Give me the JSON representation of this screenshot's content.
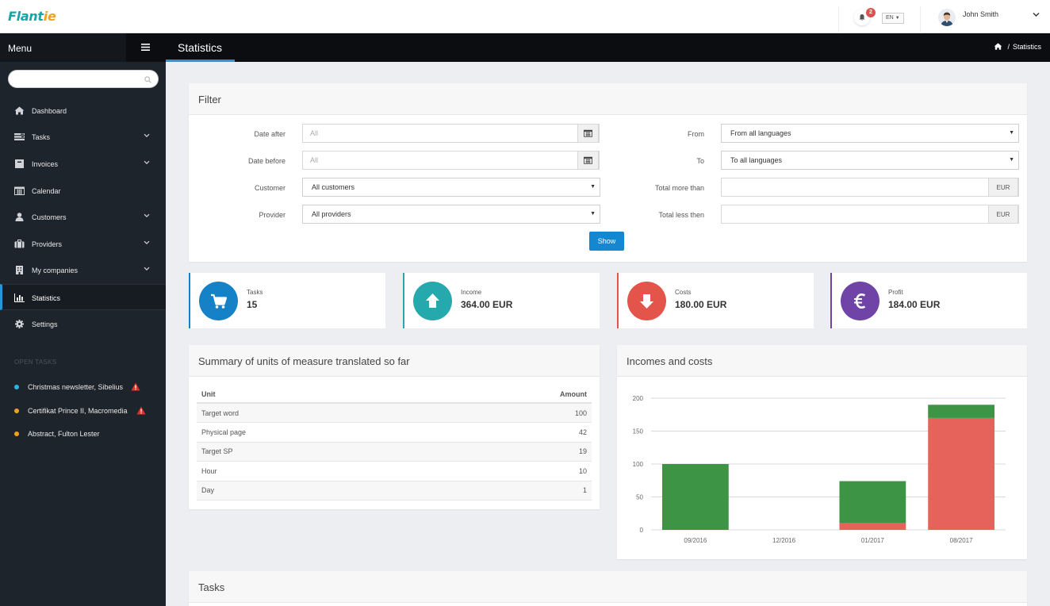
{
  "app": {
    "logo_main": "Flant",
    "logo_accent": "ie"
  },
  "topbar": {
    "notification_count": "2",
    "language": "EN",
    "user_name": "John Smith"
  },
  "sidebar": {
    "menu_title": "Menu",
    "search_placeholder": "",
    "items": [
      {
        "label": "Dashboard",
        "icon": "home-icon",
        "has_children": false
      },
      {
        "label": "Tasks",
        "icon": "tasks-icon",
        "has_children": true
      },
      {
        "label": "Invoices",
        "icon": "invoice-icon",
        "has_children": true
      },
      {
        "label": "Calendar",
        "icon": "calendar-icon",
        "has_children": false
      },
      {
        "label": "Customers",
        "icon": "user-icon",
        "has_children": true
      },
      {
        "label": "Providers",
        "icon": "briefcase-icon",
        "has_children": true
      },
      {
        "label": "My companies",
        "icon": "building-icon",
        "has_children": true
      },
      {
        "label": "Statistics",
        "icon": "bar-chart-icon",
        "has_children": false,
        "active": true
      },
      {
        "label": "Settings",
        "icon": "gear-icon",
        "has_children": false
      }
    ],
    "open_tasks_title": "OPEN TASKS",
    "open_tasks": [
      {
        "label": "Christmas newsletter, Sibelius",
        "dot_color": "#29b6e8",
        "warning": true
      },
      {
        "label": "Certifikat Prince II, Macromedia",
        "dot_color": "#f0a11e",
        "warning": true
      },
      {
        "label": "Abstract, Fulton Lester",
        "dot_color": "#f0a11e",
        "warning": false
      }
    ]
  },
  "page": {
    "title": "Statistics",
    "breadcrumb_current": "Statistics"
  },
  "filter": {
    "title": "Filter",
    "date_after_label": "Date after",
    "date_after_placeholder": "All",
    "date_before_label": "Date before",
    "date_before_placeholder": "All",
    "customer_label": "Customer",
    "customer_value": "All customers",
    "provider_label": "Provider",
    "provider_value": "All providers",
    "from_label": "From",
    "from_value": "From all languages",
    "to_label": "To",
    "to_value": "To all languages",
    "total_more_label": "Total more than",
    "total_less_label": "Total less then",
    "currency_addon": "EUR",
    "show_button": "Show"
  },
  "stats": [
    {
      "label": "Tasks",
      "value": "15",
      "color": "#1582c8",
      "icon": "cart-icon"
    },
    {
      "label": "Income",
      "value": "364.00 EUR",
      "color": "#26a9ad",
      "icon": "arrow-up-icon"
    },
    {
      "label": "Costs",
      "value": "180.00 EUR",
      "color": "#e3544b",
      "icon": "arrow-down-icon"
    },
    {
      "label": "Profit",
      "value": "184.00 EUR",
      "color": "#7044a6",
      "icon": "euro-icon"
    }
  ],
  "summary": {
    "title": "Summary of units of measure translated so far",
    "columns": [
      "Unit",
      "Amount"
    ],
    "rows": [
      [
        "Target word",
        "100"
      ],
      [
        "Physical page",
        "42"
      ],
      [
        "Target SP",
        "19"
      ],
      [
        "Hour",
        "10"
      ],
      [
        "Day",
        "1"
      ]
    ]
  },
  "incomes_costs": {
    "title": "Incomes and costs"
  },
  "tasks_panel": {
    "title": "Tasks"
  },
  "chart_data": {
    "type": "bar",
    "stacked": true,
    "title": "Incomes and costs",
    "categories": [
      "09/2016",
      "12/2016",
      "01/2017",
      "08/2017"
    ],
    "series": [
      {
        "values": [
          0,
          0,
          10,
          170
        ],
        "color": "#e5635b"
      },
      {
        "values": [
          100,
          0,
          64,
          20
        ],
        "color": "#3e9445"
      }
    ],
    "ylim": [
      0,
      200
    ],
    "yticks": [
      0,
      50,
      100,
      150,
      200
    ],
    "grid": true,
    "xlabel": "",
    "ylabel": ""
  }
}
